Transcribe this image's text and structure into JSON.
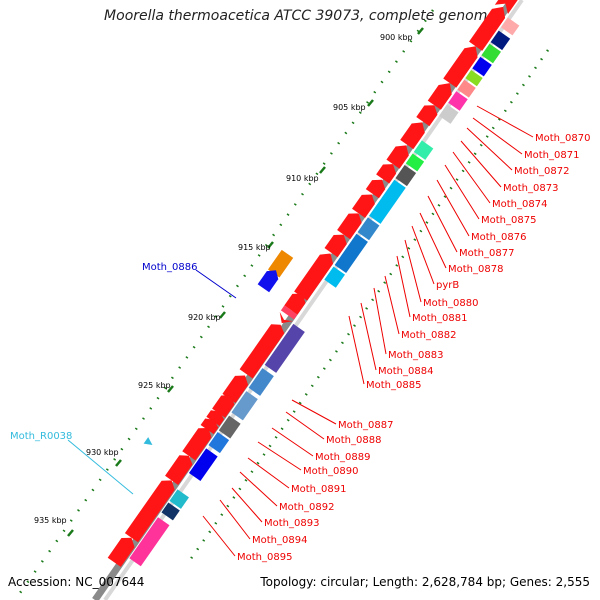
{
  "title": "Moorella thermoacetica ATCC 39073, complete genome",
  "footer": {
    "accession": "Accession: NC_007644",
    "stats": "Topology: circular; Length: 2,628,784 bp; Genes: 2,555"
  },
  "ticks": [
    "900 kbp",
    "905 kbp",
    "910 kbp",
    "915 kbp",
    "920 kbp",
    "925 kbp",
    "930 kbp",
    "935 kbp"
  ],
  "outer_labels": [
    {
      "text": "Moth_0886",
      "color": "#0000cc"
    },
    {
      "text": "Moth_R0038",
      "color": "#33bbdd"
    }
  ],
  "gene_labels": [
    "Moth_0870",
    "Moth_0871",
    "Moth_0872",
    "Moth_0873",
    "Moth_0874",
    "Moth_0875",
    "Moth_0876",
    "Moth_0877",
    "Moth_0878",
    "pyrB",
    "Moth_0880",
    "Moth_0881",
    "Moth_0882",
    "Moth_0883",
    "Moth_0884",
    "Moth_0885",
    "Moth_0887",
    "Moth_0888",
    "Moth_0889",
    "Moth_0890",
    "Moth_0891",
    "Moth_0892",
    "Moth_0893",
    "Moth_0894",
    "Moth_0895"
  ],
  "colors": {
    "label_red": "#ee0000",
    "gene_red": "#ff1010",
    "tick_green": "#1a7a1a",
    "backbone": "#888888"
  }
}
